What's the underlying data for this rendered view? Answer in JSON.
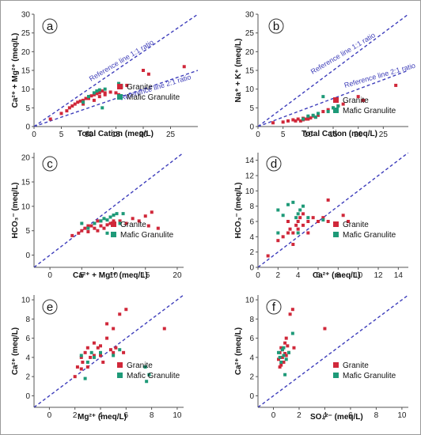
{
  "colors": {
    "granite": "#d0283a",
    "mafic": "#1e9a78",
    "refline": "#3d3dbb",
    "axis": "#555555"
  },
  "chart_data": [
    {
      "id": "a",
      "type": "scatter",
      "letter": "a",
      "xlabel": "Total Cation (meq/L)",
      "ylabel": "Ca²⁺ + Mg²⁺ (meq/L)",
      "xlim": [
        0,
        30
      ],
      "ylim": [
        0,
        30
      ],
      "xticks": [
        0,
        5,
        10,
        15,
        20,
        25
      ],
      "yticks": [
        0,
        5,
        10,
        15,
        20,
        25,
        30
      ],
      "reference_lines": [
        {
          "slope": 1,
          "label": "Reference line 1:1 ratio"
        },
        {
          "slope": 0.5,
          "label": "Reference line 2:1 ratio"
        }
      ],
      "legend": [
        "Granite",
        "Mafic Granulite"
      ],
      "series": [
        {
          "name": "Granite",
          "points": [
            [
              3,
              2
            ],
            [
              5,
              3.5
            ],
            [
              6,
              4.2
            ],
            [
              6.5,
              5
            ],
            [
              7,
              5.5
            ],
            [
              7.5,
              6
            ],
            [
              8,
              6.5
            ],
            [
              8.5,
              6.8
            ],
            [
              9,
              7
            ],
            [
              9.5,
              7.5
            ],
            [
              10,
              8
            ],
            [
              10.5,
              8.2
            ],
            [
              11,
              8.5
            ],
            [
              11.5,
              8.8
            ],
            [
              12,
              9
            ],
            [
              12.5,
              9.5
            ],
            [
              13,
              8.5
            ],
            [
              14,
              9.2
            ],
            [
              15,
              9
            ],
            [
              16,
              10.5
            ],
            [
              17,
              11
            ],
            [
              20,
              15
            ],
            [
              21,
              14
            ],
            [
              27.5,
              16
            ],
            [
              9,
              6
            ],
            [
              10,
              7.5
            ],
            [
              12,
              8
            ],
            [
              13,
              9
            ],
            [
              15.5,
              8.5
            ],
            [
              11,
              7
            ]
          ]
        },
        {
          "name": "Mafic Granulite",
          "points": [
            [
              9,
              6.5
            ],
            [
              10,
              8
            ],
            [
              11,
              9
            ],
            [
              11.5,
              9.5
            ],
            [
              12,
              9.8
            ],
            [
              13,
              10
            ],
            [
              15.5,
              11.5
            ],
            [
              16,
              11
            ],
            [
              12.5,
              5
            ]
          ]
        }
      ]
    },
    {
      "id": "b",
      "type": "scatter",
      "letter": "b",
      "xlabel": "Total Cation (meq/L)",
      "ylabel": "Na⁺ + K⁺ (meq/L)",
      "xlim": [
        0,
        30
      ],
      "ylim": [
        0,
        30
      ],
      "xticks": [
        0,
        5,
        10,
        15,
        20,
        25
      ],
      "yticks": [
        0,
        5,
        10,
        15,
        20,
        25,
        30
      ],
      "reference_lines": [
        {
          "slope": 1,
          "label": "Reference line 1:1 ratio"
        },
        {
          "slope": 0.5,
          "label": "Reference line 2:1 ratio"
        }
      ],
      "legend": [
        "Granite",
        "Mafic Granulite"
      ],
      "series": [
        {
          "name": "Granite",
          "points": [
            [
              3,
              1
            ],
            [
              5,
              1.2
            ],
            [
              6,
              1.5
            ],
            [
              7,
              1.8
            ],
            [
              7.5,
              1.5
            ],
            [
              8,
              2
            ],
            [
              8.5,
              1.5
            ],
            [
              9,
              2.2
            ],
            [
              9.5,
              2
            ],
            [
              10,
              2.5
            ],
            [
              10.5,
              2.3
            ],
            [
              11,
              2.8
            ],
            [
              11.5,
              2.5
            ],
            [
              12,
              3
            ],
            [
              13,
              4
            ],
            [
              14,
              4.5
            ],
            [
              15,
              5
            ],
            [
              16,
              5.5
            ],
            [
              17,
              6
            ],
            [
              20,
              8
            ],
            [
              21,
              7
            ],
            [
              27.5,
              11
            ],
            [
              9,
              1.8
            ],
            [
              10,
              2
            ]
          ]
        },
        {
          "name": "Mafic Granulite",
          "points": [
            [
              9,
              2
            ],
            [
              10,
              2.8
            ],
            [
              11,
              3
            ],
            [
              12,
              3.5
            ],
            [
              13,
              8
            ],
            [
              14,
              4
            ],
            [
              15,
              5
            ],
            [
              16,
              5.5
            ],
            [
              11.5,
              2.5
            ]
          ]
        }
      ]
    },
    {
      "id": "c",
      "type": "scatter",
      "letter": "c",
      "xlabel": "Ca²⁺ + Mg²⁺ (meq/L)",
      "ylabel": "HCO₃⁻ (meq/L)",
      "xlim": [
        -2.5,
        21
      ],
      "ylim": [
        -2.5,
        21
      ],
      "xticks": [
        0,
        5,
        10,
        15,
        20
      ],
      "yticks": [
        0,
        5,
        10,
        15,
        20
      ],
      "reference_lines": [
        {
          "slope": 1,
          "label": ""
        }
      ],
      "legend": [
        "Granite",
        "Mafic Granulite"
      ],
      "series": [
        {
          "name": "Granite",
          "points": [
            [
              3.5,
              4
            ],
            [
              4.5,
              4.5
            ],
            [
              5,
              5
            ],
            [
              5.5,
              5.5
            ],
            [
              6,
              4.8
            ],
            [
              6.5,
              6
            ],
            [
              7,
              5.5
            ],
            [
              7,
              6.5
            ],
            [
              7.5,
              5
            ],
            [
              8,
              6
            ],
            [
              8,
              7
            ],
            [
              8.5,
              5.5
            ],
            [
              9,
              6.2
            ],
            [
              9.5,
              6.5
            ],
            [
              10,
              7
            ],
            [
              11,
              7
            ],
            [
              12,
              6.5
            ],
            [
              13,
              7.5
            ],
            [
              14,
              7
            ],
            [
              15,
              8
            ],
            [
              15.5,
              6
            ],
            [
              16,
              8.8
            ],
            [
              17,
              5.5
            ],
            [
              6,
              6
            ],
            [
              7.5,
              7
            ]
          ]
        },
        {
          "name": "Mafic Granulite",
          "points": [
            [
              5,
              6.5
            ],
            [
              6,
              5.5
            ],
            [
              7,
              6.5
            ],
            [
              8,
              7
            ],
            [
              8.5,
              7.5
            ],
            [
              9,
              7.2
            ],
            [
              9.5,
              7.8
            ],
            [
              10,
              8.2
            ],
            [
              10.5,
              8.5
            ],
            [
              11,
              6.5
            ],
            [
              9,
              4.5
            ],
            [
              11.5,
              8.5
            ]
          ]
        }
      ]
    },
    {
      "id": "d",
      "type": "scatter",
      "letter": "d",
      "xlabel": "Ca²⁺ (meq/L)",
      "ylabel": "HCO₃⁻ (meq/L)",
      "xlim": [
        0,
        15
      ],
      "ylim": [
        0,
        15
      ],
      "xticks": [
        0,
        2,
        4,
        6,
        8,
        10,
        12,
        14
      ],
      "yticks": [
        0,
        2,
        4,
        6,
        8,
        10,
        12,
        14
      ],
      "reference_lines": [
        {
          "slope": 1,
          "label": ""
        }
      ],
      "legend": [
        "Granite",
        "Mafic Granulite"
      ],
      "series": [
        {
          "name": "Granite",
          "points": [
            [
              1,
              1.5
            ],
            [
              2,
              3.5
            ],
            [
              2.5,
              4
            ],
            [
              3,
              4.5
            ],
            [
              3.2,
              5
            ],
            [
              3.5,
              4.5
            ],
            [
              3.8,
              5.5
            ],
            [
              4,
              6
            ],
            [
              4,
              5
            ],
            [
              4.2,
              6.5
            ],
            [
              4.5,
              7
            ],
            [
              4.5,
              5.5
            ],
            [
              5,
              6
            ],
            [
              5,
              4.5
            ],
            [
              5.5,
              6.5
            ],
            [
              6,
              6
            ],
            [
              6.5,
              6.5
            ],
            [
              7,
              8.8
            ],
            [
              7,
              6
            ],
            [
              8.5,
              6.8
            ],
            [
              9,
              6
            ],
            [
              3,
              6
            ],
            [
              3.5,
              3
            ]
          ]
        },
        {
          "name": "Mafic Granulite",
          "points": [
            [
              2,
              7.5
            ],
            [
              2.5,
              6.8
            ],
            [
              3,
              8.2
            ],
            [
              3.5,
              8.5
            ],
            [
              4,
              7
            ],
            [
              4.2,
              7.5
            ],
            [
              4.5,
              8
            ],
            [
              3.8,
              6.5
            ],
            [
              5,
              6.5
            ],
            [
              6.5,
              6.2
            ],
            [
              4,
              4.5
            ],
            [
              2,
              4.5
            ]
          ]
        }
      ]
    },
    {
      "id": "e",
      "type": "scatter",
      "letter": "e",
      "xlabel": "Mg²⁺ (meq/L)",
      "ylabel": "Ca²⁺ (meq/L)",
      "xlim": [
        -1.2,
        10.5
      ],
      "ylim": [
        -1.2,
        10.5
      ],
      "xticks": [
        0,
        2,
        4,
        6,
        8,
        10
      ],
      "yticks": [
        0,
        2,
        4,
        6,
        8,
        10
      ],
      "reference_lines": [
        {
          "slope": 1,
          "label": ""
        }
      ],
      "legend": [
        "Granite",
        "Mafic Granulite"
      ],
      "series": [
        {
          "name": "Granite",
          "points": [
            [
              2,
              2
            ],
            [
              2.2,
              3
            ],
            [
              2.5,
              4
            ],
            [
              2.6,
              3.5
            ],
            [
              2.8,
              4.5
            ],
            [
              3,
              3
            ],
            [
              3,
              5
            ],
            [
              3.2,
              4
            ],
            [
              3.5,
              5.5
            ],
            [
              3.5,
              4.2
            ],
            [
              3.8,
              5
            ],
            [
              4,
              4.2
            ],
            [
              4.2,
              3.5
            ],
            [
              4.5,
              6
            ],
            [
              4.5,
              7.5
            ],
            [
              4.8,
              4.8
            ],
            [
              5,
              4.5
            ],
            [
              5,
              7
            ],
            [
              5.2,
              5
            ],
            [
              5.5,
              8.5
            ],
            [
              5.8,
              4.5
            ],
            [
              6,
              9
            ],
            [
              9,
              7
            ],
            [
              2.5,
              2.8
            ],
            [
              4,
              5.2
            ]
          ]
        },
        {
          "name": "Mafic Granulite",
          "points": [
            [
              2.5,
              4.2
            ],
            [
              2.8,
              1.8
            ],
            [
              3,
              3.5
            ],
            [
              3.3,
              4.5
            ],
            [
              3.5,
              4
            ],
            [
              4,
              4.5
            ],
            [
              5,
              4.2
            ],
            [
              5.5,
              4.8
            ],
            [
              7.5,
              3
            ],
            [
              7.8,
              2.2
            ],
            [
              7.6,
              1.5
            ]
          ]
        }
      ]
    },
    {
      "id": "f",
      "type": "scatter",
      "letter": "f",
      "xlabel": "SO₄²⁻ (meq/L)",
      "ylabel": "Ca²⁺ (meq/L)",
      "xlim": [
        -1.2,
        10.5
      ],
      "ylim": [
        -1.2,
        10.5
      ],
      "xticks": [
        0,
        2,
        4,
        6,
        8,
        10
      ],
      "yticks": [
        0,
        2,
        4,
        6,
        8,
        10
      ],
      "reference_lines": [
        {
          "slope": 1,
          "label": ""
        }
      ],
      "legend": [
        "Granite",
        "Mafic Granulite"
      ],
      "series": [
        {
          "name": "Granite",
          "points": [
            [
              0.4,
              3.8
            ],
            [
              0.5,
              4.5
            ],
            [
              0.5,
              3
            ],
            [
              0.6,
              5
            ],
            [
              0.7,
              4
            ],
            [
              0.7,
              4.8
            ],
            [
              0.8,
              3.5
            ],
            [
              0.9,
              5.5
            ],
            [
              1,
              4.2
            ],
            [
              1,
              6
            ],
            [
              1.2,
              4.5
            ],
            [
              1.3,
              8.5
            ],
            [
              1.5,
              9
            ],
            [
              1.6,
              5
            ],
            [
              4,
              7
            ],
            [
              0.6,
              3.2
            ],
            [
              0.9,
              4.4
            ],
            [
              1.1,
              5.2
            ]
          ]
        },
        {
          "name": "Mafic Granulite",
          "points": [
            [
              0.4,
              4.5
            ],
            [
              0.5,
              4
            ],
            [
              0.6,
              3.5
            ],
            [
              0.7,
              4.8
            ],
            [
              0.8,
              4.2
            ],
            [
              0.9,
              2.2
            ],
            [
              1,
              3.8
            ],
            [
              1.2,
              4.5
            ],
            [
              1.5,
              6.5
            ],
            [
              0.8,
              5
            ]
          ]
        }
      ]
    }
  ]
}
